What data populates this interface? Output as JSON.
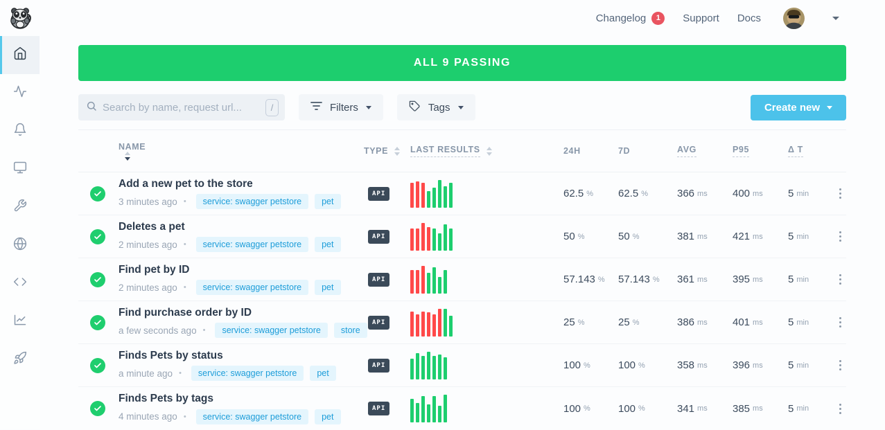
{
  "topbar": {
    "nav": [
      {
        "label": "Changelog",
        "badge": "1"
      },
      {
        "label": "Support"
      },
      {
        "label": "Docs"
      }
    ]
  },
  "sidebar": {
    "items": [
      "home",
      "checks",
      "alerts",
      "dashboards",
      "maintenance",
      "private-locations",
      "snippets",
      "analytics",
      "quickstart"
    ]
  },
  "banner": {
    "text": "ALL 9 PASSING"
  },
  "controls": {
    "search_placeholder": "Search by name, request url...",
    "search_shortcut": "/",
    "filters_label": "Filters",
    "tags_label": "Tags",
    "create_label": "Create new"
  },
  "table": {
    "headers": {
      "name": "NAME",
      "type": "TYPE",
      "last_results": "LAST RESULTS",
      "h24": "24H",
      "d7": "7D",
      "avg": "AVG",
      "p95": "P95",
      "dt": "Δ T"
    },
    "units": {
      "percent": "%",
      "ms": "ms",
      "min": "min"
    },
    "rows": [
      {
        "name": "Add a new pet to the store",
        "time": "3 minutes ago",
        "tags": [
          "service: swagger petstore",
          "pet"
        ],
        "type": "API",
        "bars": [
          {
            "c": "r",
            "h": 0.9
          },
          {
            "c": "r",
            "h": 0.95
          },
          {
            "c": "r",
            "h": 0.9
          },
          {
            "c": "g",
            "h": 0.6
          },
          {
            "c": "g",
            "h": 0.72
          },
          {
            "c": "g",
            "h": 1
          },
          {
            "c": "g",
            "h": 0.78
          },
          {
            "c": "g",
            "h": 0.9
          }
        ],
        "h24": "62.5",
        "d7": "62.5",
        "avg": "366",
        "p95": "400",
        "dt": "5"
      },
      {
        "name": "Deletes a pet",
        "time": "2 minutes ago",
        "tags": [
          "service: swagger petstore",
          "pet"
        ],
        "type": "API",
        "bars": [
          {
            "c": "r",
            "h": 0.8
          },
          {
            "c": "r",
            "h": 0.8
          },
          {
            "c": "r",
            "h": 1
          },
          {
            "c": "r",
            "h": 0.85
          },
          {
            "c": "g",
            "h": 0.8
          },
          {
            "c": "g",
            "h": 0.62
          },
          {
            "c": "g",
            "h": 0.95
          },
          {
            "c": "g",
            "h": 0.8
          }
        ],
        "h24": "50",
        "d7": "50",
        "avg": "381",
        "p95": "421",
        "dt": "5"
      },
      {
        "name": "Find pet by ID",
        "time": "2 minutes ago",
        "tags": [
          "service: swagger petstore",
          "pet"
        ],
        "type": "API",
        "bars": [
          {
            "c": "r",
            "h": 0.85
          },
          {
            "c": "r",
            "h": 0.85
          },
          {
            "c": "r",
            "h": 1
          },
          {
            "c": "g",
            "h": 0.75
          },
          {
            "c": "g",
            "h": 0.95
          },
          {
            "c": "g",
            "h": 0.6
          },
          {
            "c": "g",
            "h": 0.85
          }
        ],
        "h24": "57.143",
        "d7": "57.143",
        "avg": "361",
        "p95": "395",
        "dt": "5"
      },
      {
        "name": "Find purchase order by ID",
        "time": "a few seconds ago",
        "tags": [
          "service: swagger petstore",
          "store"
        ],
        "type": "API",
        "bars": [
          {
            "c": "r",
            "h": 0.9
          },
          {
            "c": "r",
            "h": 0.8
          },
          {
            "c": "r",
            "h": 0.9
          },
          {
            "c": "r",
            "h": 0.88
          },
          {
            "c": "r",
            "h": 0.8
          },
          {
            "c": "r",
            "h": 1
          },
          {
            "c": "g",
            "h": 1
          },
          {
            "c": "g",
            "h": 0.75
          }
        ],
        "h24": "25",
        "d7": "25",
        "avg": "386",
        "p95": "401",
        "dt": "5"
      },
      {
        "name": "Finds Pets by status",
        "time": "a minute ago",
        "tags": [
          "service: swagger petstore",
          "pet"
        ],
        "type": "API",
        "bars": [
          {
            "c": "g",
            "h": 0.75
          },
          {
            "c": "g",
            "h": 0.95
          },
          {
            "c": "g",
            "h": 0.85
          },
          {
            "c": "g",
            "h": 1
          },
          {
            "c": "g",
            "h": 0.85
          },
          {
            "c": "g",
            "h": 0.9
          },
          {
            "c": "g",
            "h": 0.8
          }
        ],
        "h24": "100",
        "d7": "100",
        "avg": "358",
        "p95": "396",
        "dt": "5"
      },
      {
        "name": "Finds Pets by tags",
        "time": "4 minutes ago",
        "tags": [
          "service: swagger petstore",
          "pet"
        ],
        "type": "API",
        "bars": [
          {
            "c": "g",
            "h": 0.85
          },
          {
            "c": "g",
            "h": 0.7
          },
          {
            "c": "g",
            "h": 0.95
          },
          {
            "c": "g",
            "h": 0.65
          },
          {
            "c": "g",
            "h": 0.95
          },
          {
            "c": "g",
            "h": 0.6
          },
          {
            "c": "g",
            "h": 1
          }
        ],
        "h24": "100",
        "d7": "100",
        "avg": "341",
        "p95": "385",
        "dt": "5"
      }
    ]
  },
  "colors": {
    "success_green": "#1dce6e",
    "fail_red": "#ff4949",
    "accent_blue": "#4cc2ea",
    "tag_blue": "#1d9dd9",
    "badge_red": "#e95460"
  }
}
